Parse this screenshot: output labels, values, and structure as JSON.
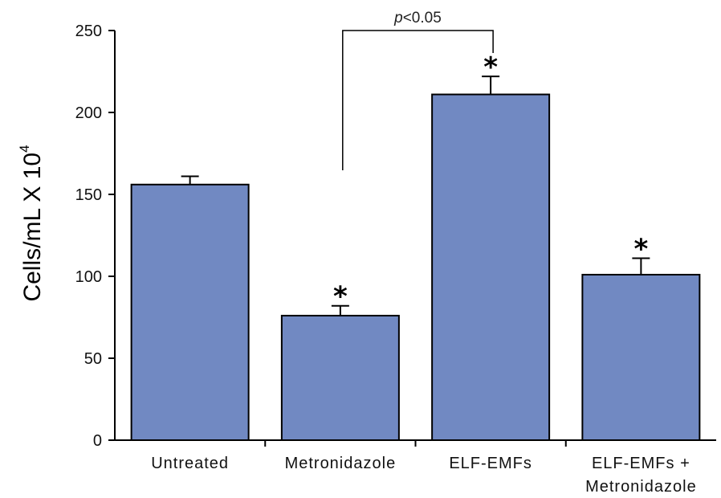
{
  "chart_data": {
    "type": "bar",
    "categories": [
      "Untreated",
      "Metronidazole",
      "ELF-EMFs",
      "ELF-EMFs + Metronidazole"
    ],
    "category_lines": [
      [
        "Untreated"
      ],
      [
        "Metronidazole"
      ],
      [
        "ELF-EMFs"
      ],
      [
        "ELF-EMFs +",
        "Metronidazole"
      ]
    ],
    "values": [
      156,
      76,
      211,
      101
    ],
    "errors": [
      5,
      6,
      11,
      10
    ],
    "significance_marks": [
      "",
      "*",
      "*",
      "*"
    ],
    "ylabel": "Cells/mL X 10",
    "ylabel_superscript": "4",
    "ylim": [
      0,
      250
    ],
    "yticks": [
      0,
      50,
      100,
      150,
      200,
      250
    ],
    "bracket": {
      "from": "Metronidazole",
      "to": "ELF-EMFs",
      "label_italic": "p",
      "label_rest": "<0.05"
    },
    "bar_color": "#7189c2",
    "grid": false,
    "legend": "none"
  }
}
